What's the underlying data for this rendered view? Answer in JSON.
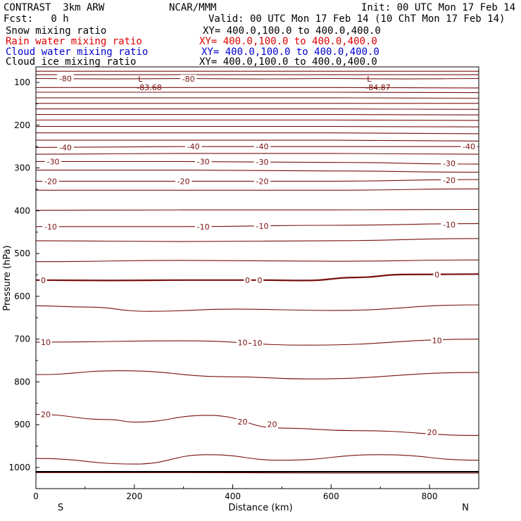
{
  "header": {
    "model": "CONTRAST  3km ARW",
    "org": "NCAR/MMM",
    "init": "Init: 00 UTC Mon 17 Feb 14",
    "fcst": "Fcst:   0 h",
    "valid": "Valid: 00 UTC Mon 17 Feb 14 (10 ChT Mon 17 Feb 14)"
  },
  "fields": [
    {
      "name": "Snow mixing ratio",
      "xy": "XY= 400.0,100.0 to 400.0,400.0",
      "color": "#000000"
    },
    {
      "name": "Rain water mixing ratio",
      "xy": "XY= 400.0,100.0 to 400.0,400.0",
      "color": "#e00000"
    },
    {
      "name": "Cloud water mixing ratio",
      "xy": "XY= 400.0,100.0 to 400.0,400.0",
      "color": "#0000cc"
    },
    {
      "name": "Cloud ice mixing ratio",
      "xy": "XY= 400.0,100.0 to 400.0,400.0",
      "color": "#000000"
    }
  ],
  "chart_data": {
    "type": "line",
    "xlabel": "Distance (km)",
    "ylabel": "Pressure (hPa)",
    "xlim": [
      0,
      900
    ],
    "ylim": [
      1050,
      70
    ],
    "x_ticks": [
      "0",
      "200",
      "400",
      "600",
      "800"
    ],
    "y_ticks": [
      "100",
      "200",
      "300",
      "400",
      "500",
      "600",
      "700",
      "800",
      "900",
      "1000"
    ],
    "x_end_labels": {
      "left": "S",
      "right": "N"
    },
    "contour_color": "#7a1010",
    "lows": [
      {
        "letter": "L",
        "value": "-83.68",
        "x": 225,
        "p": 100
      },
      {
        "letter": "L",
        "value": "-84.87",
        "x": 690,
        "p": 100
      }
    ],
    "series": [
      {
        "x": [
          0,
          300,
          600,
          900
        ],
        "y": [
          74,
          74,
          74,
          74
        ]
      },
      {
        "x": [
          0,
          300,
          600,
          900
        ],
        "y": [
          82,
          82,
          82,
          82
        ]
      },
      {
        "label": "-80",
        "x": [
          0,
          150,
          300,
          450,
          600,
          750,
          900
        ],
        "y": [
          91,
          92,
          91,
          92,
          91,
          92,
          91
        ]
      },
      {
        "x": [
          0,
          300,
          600,
          900
        ],
        "y": [
          112,
          112,
          112,
          113
        ]
      },
      {
        "x": [
          0,
          300,
          600,
          900
        ],
        "y": [
          123,
          123,
          123,
          124
        ]
      },
      {
        "x": [
          0,
          300,
          600,
          900
        ],
        "y": [
          136,
          136,
          136,
          137
        ]
      },
      {
        "x": [
          0,
          300,
          600,
          900
        ],
        "y": [
          149,
          149,
          149,
          149
        ]
      },
      {
        "x": [
          0,
          300,
          600,
          900
        ],
        "y": [
          162,
          162,
          162,
          163
        ]
      },
      {
        "x": [
          0,
          300,
          600,
          900
        ],
        "y": [
          175,
          175,
          175,
          176
        ]
      },
      {
        "x": [
          0,
          300,
          600,
          900
        ],
        "y": [
          188,
          188,
          188,
          189
        ]
      },
      {
        "x": [
          0,
          300,
          600,
          900
        ],
        "y": [
          203,
          203,
          203,
          204
        ]
      },
      {
        "x": [
          0,
          300,
          600,
          900
        ],
        "y": [
          218,
          218,
          218,
          220
        ]
      },
      {
        "x": [
          0,
          300,
          600,
          900
        ],
        "y": [
          235,
          235,
          235,
          237
        ]
      },
      {
        "label": "-40",
        "x": [
          0,
          300,
          600,
          900
        ],
        "y": [
          252,
          250,
          250,
          250
        ]
      },
      {
        "x": [
          0,
          300,
          600,
          900
        ],
        "y": [
          268,
          266,
          266,
          268
        ]
      },
      {
        "label": "-30",
        "x": [
          0,
          300,
          600,
          900
        ],
        "y": [
          285,
          285,
          287,
          291
        ]
      },
      {
        "x": [
          0,
          300,
          600,
          900
        ],
        "y": [
          305,
          305,
          307,
          310
        ]
      },
      {
        "label": "-20",
        "x": [
          0,
          300,
          600,
          900
        ],
        "y": [
          331,
          331,
          331,
          327
        ]
      },
      {
        "x": [
          0,
          300,
          600,
          900
        ],
        "y": [
          352,
          352,
          352,
          349
        ]
      },
      {
        "x": [
          0,
          300,
          600,
          900
        ],
        "y": [
          399,
          398,
          398,
          397
        ]
      },
      {
        "label": "-10",
        "x": [
          0,
          300,
          600,
          900
        ],
        "y": [
          437,
          437,
          434,
          430
        ]
      },
      {
        "x": [
          0,
          300,
          600,
          900
        ],
        "y": [
          470,
          472,
          470,
          465
        ]
      },
      {
        "x": [
          0,
          300,
          600,
          900
        ],
        "y": [
          519,
          516,
          518,
          515
        ]
      },
      {
        "label": "0",
        "x": [
          0,
          150,
          300,
          450,
          550,
          650,
          750,
          900
        ],
        "y": [
          562,
          563,
          562,
          562,
          563,
          556,
          549,
          548
        ]
      },
      {
        "x": [
          0,
          100,
          230,
          400,
          600,
          900
        ],
        "y": [
          622,
          625,
          635,
          630,
          633,
          620
        ]
      },
      {
        "label": "10",
        "x": [
          0,
          300,
          550,
          900
        ],
        "y": [
          707,
          704,
          714,
          700
        ]
      },
      {
        "x": [
          0,
          170,
          400,
          550,
          900
        ],
        "y": [
          783,
          774,
          788,
          793,
          778
        ]
      },
      {
        "label": "20",
        "x": [
          0,
          150,
          200,
          350,
          500,
          650,
          900
        ],
        "y": [
          876,
          888,
          894,
          878,
          908,
          914,
          925
        ]
      },
      {
        "x": [
          0,
          200,
          350,
          500,
          700,
          900
        ],
        "y": [
          979,
          992,
          970,
          983,
          970,
          983
        ]
      },
      {
        "x": [
          0,
          300,
          600,
          900
        ],
        "y": [
          1012,
          1012,
          1013,
          1013
        ]
      }
    ],
    "label_positions": [
      {
        "text": "-80",
        "x": 60,
        "p": 91
      },
      {
        "text": "-80",
        "x": 310,
        "p": 92
      },
      {
        "text": "-40",
        "x": 60,
        "p": 252
      },
      {
        "text": "-40",
        "x": 320,
        "p": 250
      },
      {
        "text": "-40",
        "x": 460,
        "p": 250
      },
      {
        "text": "-40",
        "x": 880,
        "p": 250
      },
      {
        "text": "-30",
        "x": 35,
        "p": 285
      },
      {
        "text": "-30",
        "x": 340,
        "p": 285
      },
      {
        "text": "-30",
        "x": 460,
        "p": 286
      },
      {
        "text": "-30",
        "x": 840,
        "p": 289
      },
      {
        "text": "-20",
        "x": 30,
        "p": 331
      },
      {
        "text": "-20",
        "x": 300,
        "p": 331
      },
      {
        "text": "-20",
        "x": 460,
        "p": 331
      },
      {
        "text": "-20",
        "x": 840,
        "p": 329
      },
      {
        "text": "-10",
        "x": 30,
        "p": 437
      },
      {
        "text": "-10",
        "x": 340,
        "p": 437
      },
      {
        "text": "-10",
        "x": 460,
        "p": 436
      },
      {
        "text": "-10",
        "x": 840,
        "p": 432
      },
      {
        "text": "0",
        "x": 15,
        "p": 562
      },
      {
        "text": "0",
        "x": 430,
        "p": 562
      },
      {
        "text": "0",
        "x": 455,
        "p": 562
      },
      {
        "text": "0",
        "x": 815,
        "p": 549
      },
      {
        "text": "10",
        "x": 20,
        "p": 707
      },
      {
        "text": "10",
        "x": 420,
        "p": 708
      },
      {
        "text": "10",
        "x": 450,
        "p": 709
      },
      {
        "text": "10",
        "x": 815,
        "p": 703
      },
      {
        "text": "20",
        "x": 20,
        "p": 876
      },
      {
        "text": "20",
        "x": 420,
        "p": 893
      },
      {
        "text": "20",
        "x": 480,
        "p": 899
      },
      {
        "text": "20",
        "x": 805,
        "p": 918
      }
    ]
  }
}
